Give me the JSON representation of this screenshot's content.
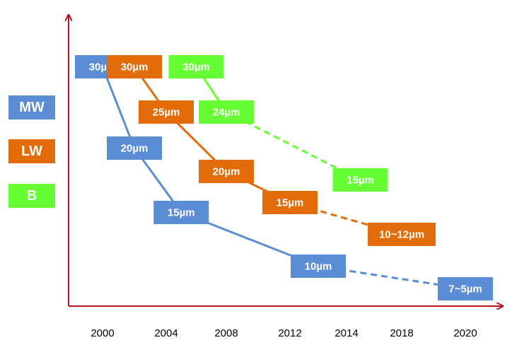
{
  "colors": {
    "MW": "#5B8DD5",
    "LW": "#E36C0A",
    "B": "#66FF33",
    "axis": "#B8151F"
  },
  "legend": [
    {
      "key": "MW",
      "label": "MW"
    },
    {
      "key": "LW",
      "label": "LW"
    },
    {
      "key": "B",
      "label": "B"
    }
  ],
  "chart_data": {
    "type": "line",
    "title": "",
    "xlabel": "",
    "ylabel": "",
    "x_ticks": [
      "2000",
      "2004",
      "2008",
      "2012",
      "2014",
      "2018",
      "2020"
    ],
    "grid": false,
    "legend_position": "left",
    "series": [
      {
        "name": "MW",
        "points": [
          {
            "x": "2000",
            "label": "30µm",
            "value": 30,
            "dashed_to_next": false
          },
          {
            "x": "2002",
            "label": "20µm",
            "value": 20,
            "dashed_to_next": false
          },
          {
            "x": "2005",
            "label": "15µm",
            "value": 15,
            "dashed_to_next": false
          },
          {
            "x": "2013",
            "label": "10µm",
            "value": 10,
            "dashed_to_next": true
          },
          {
            "x": "2020",
            "label": "7~5µm",
            "value": 6,
            "dashed_to_next": false
          }
        ]
      },
      {
        "name": "LW",
        "points": [
          {
            "x": "2002",
            "label": "30µm",
            "value": 30,
            "dashed_to_next": false
          },
          {
            "x": "2004",
            "label": "25µm",
            "value": 25,
            "dashed_to_next": false
          },
          {
            "x": "2008",
            "label": "20µm",
            "value": 20,
            "dashed_to_next": false
          },
          {
            "x": "2012",
            "label": "15µm",
            "value": 15,
            "dashed_to_next": true
          },
          {
            "x": "2018",
            "label": "10~12µm",
            "value": 11,
            "dashed_to_next": false
          }
        ]
      },
      {
        "name": "B",
        "points": [
          {
            "x": "2006",
            "label": "30µm",
            "value": 30,
            "dashed_to_next": false
          },
          {
            "x": "2008",
            "label": "24µm",
            "value": 24,
            "dashed_to_next": true
          },
          {
            "x": "2015",
            "label": "15µm",
            "value": 15,
            "dashed_to_next": false
          }
        ]
      }
    ]
  }
}
